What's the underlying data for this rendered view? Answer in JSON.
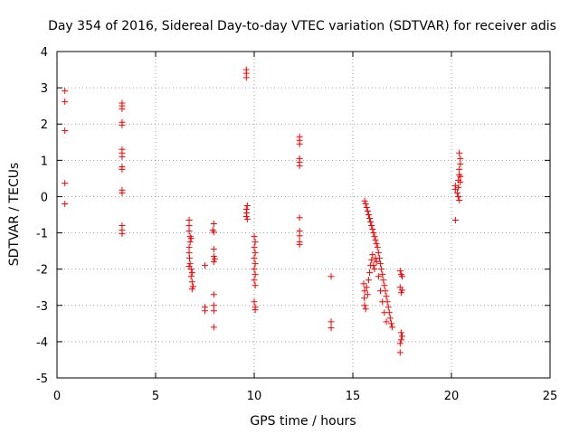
{
  "chart_data": {
    "type": "scatter",
    "title": "Day 354 of 2016, Sidereal Day-to-day VTEC variation (SDTVAR) for receiver adis",
    "xlabel": "GPS time / hours",
    "ylabel": "SDTVAR / TECUs",
    "xlim": [
      0,
      25
    ],
    "ylim": [
      -5,
      4
    ],
    "xticks": [
      "0",
      "5",
      "10",
      "15",
      "20",
      "25"
    ],
    "yticks": [
      "-5",
      "-4",
      "-3",
      "-2",
      "-1",
      "0",
      "1",
      "2",
      "3",
      "4"
    ],
    "grid": true,
    "marker": "+",
    "color": "#ff0000",
    "series": [
      {
        "name": "SDTVAR",
        "points": [
          [
            0.4,
            2.92
          ],
          [
            0.4,
            2.62
          ],
          [
            0.4,
            1.82
          ],
          [
            0.4,
            0.37
          ],
          [
            0.4,
            -0.2
          ],
          [
            3.3,
            2.58
          ],
          [
            3.3,
            2.5
          ],
          [
            3.3,
            2.42
          ],
          [
            3.3,
            2.05
          ],
          [
            3.3,
            1.97
          ],
          [
            3.3,
            1.3
          ],
          [
            3.3,
            1.2
          ],
          [
            3.3,
            1.1
          ],
          [
            3.3,
            0.82
          ],
          [
            3.3,
            0.75
          ],
          [
            3.3,
            0.18
          ],
          [
            3.3,
            0.1
          ],
          [
            3.3,
            -0.8
          ],
          [
            3.3,
            -0.92
          ],
          [
            3.3,
            -1.02
          ],
          [
            6.7,
            -0.65
          ],
          [
            6.7,
            -0.8
          ],
          [
            6.7,
            -0.95
          ],
          [
            6.75,
            -1.1
          ],
          [
            6.8,
            -1.15
          ],
          [
            6.75,
            -1.25
          ],
          [
            6.7,
            -1.4
          ],
          [
            6.7,
            -1.55
          ],
          [
            6.72,
            -1.7
          ],
          [
            6.75,
            -1.85
          ],
          [
            6.7,
            -1.92
          ],
          [
            6.8,
            -2.0
          ],
          [
            6.85,
            -2.1
          ],
          [
            6.8,
            -2.2
          ],
          [
            6.85,
            -2.35
          ],
          [
            6.9,
            -2.48
          ],
          [
            6.85,
            -2.55
          ],
          [
            7.5,
            -1.9
          ],
          [
            7.5,
            -3.05
          ],
          [
            7.5,
            -3.15
          ],
          [
            7.95,
            -0.75
          ],
          [
            7.9,
            -0.92
          ],
          [
            7.95,
            -0.98
          ],
          [
            7.95,
            -1.45
          ],
          [
            7.95,
            -1.65
          ],
          [
            8.0,
            -1.72
          ],
          [
            7.95,
            -1.8
          ],
          [
            7.95,
            -2.7
          ],
          [
            7.95,
            -3.0
          ],
          [
            7.95,
            -3.15
          ],
          [
            7.95,
            -3.6
          ],
          [
            9.6,
            3.5
          ],
          [
            9.6,
            3.4
          ],
          [
            9.6,
            3.28
          ],
          [
            9.65,
            -0.25
          ],
          [
            9.6,
            -0.35
          ],
          [
            9.62,
            -0.45
          ],
          [
            9.6,
            -0.55
          ],
          [
            9.65,
            -0.62
          ],
          [
            10.0,
            -1.1
          ],
          [
            10.05,
            -1.25
          ],
          [
            10.0,
            -1.4
          ],
          [
            10.05,
            -1.55
          ],
          [
            10.0,
            -1.7
          ],
          [
            10.05,
            -1.85
          ],
          [
            10.0,
            -2.0
          ],
          [
            10.05,
            -2.15
          ],
          [
            10.0,
            -2.3
          ],
          [
            10.05,
            -2.45
          ],
          [
            10.0,
            -2.9
          ],
          [
            10.05,
            -3.05
          ],
          [
            10.05,
            -3.12
          ],
          [
            12.3,
            1.65
          ],
          [
            12.3,
            1.55
          ],
          [
            12.3,
            1.45
          ],
          [
            12.3,
            1.05
          ],
          [
            12.3,
            0.95
          ],
          [
            12.3,
            0.85
          ],
          [
            12.3,
            -0.58
          ],
          [
            12.3,
            -0.95
          ],
          [
            12.3,
            -1.08
          ],
          [
            12.3,
            -1.25
          ],
          [
            12.3,
            -1.32
          ],
          [
            13.9,
            -2.2
          ],
          [
            13.9,
            -3.45
          ],
          [
            13.9,
            -3.62
          ],
          [
            15.6,
            -0.12
          ],
          [
            15.65,
            -0.2
          ],
          [
            15.7,
            -0.3
          ],
          [
            15.75,
            -0.4
          ],
          [
            15.8,
            -0.5
          ],
          [
            15.85,
            -0.6
          ],
          [
            15.9,
            -0.7
          ],
          [
            15.95,
            -0.8
          ],
          [
            16.0,
            -0.9
          ],
          [
            16.05,
            -1.0
          ],
          [
            16.1,
            -1.1
          ],
          [
            16.15,
            -1.2
          ],
          [
            16.2,
            -1.3
          ],
          [
            16.25,
            -1.4
          ],
          [
            16.3,
            -1.55
          ],
          [
            16.35,
            -1.7
          ],
          [
            16.4,
            -1.85
          ],
          [
            16.45,
            -2.0
          ],
          [
            16.5,
            -2.15
          ],
          [
            16.55,
            -2.3
          ],
          [
            16.6,
            -2.45
          ],
          [
            16.65,
            -2.6
          ],
          [
            16.7,
            -2.75
          ],
          [
            16.75,
            -2.9
          ],
          [
            16.8,
            -3.05
          ],
          [
            16.85,
            -3.2
          ],
          [
            16.9,
            -3.35
          ],
          [
            16.95,
            -3.5
          ],
          [
            17.0,
            -3.6
          ],
          [
            15.55,
            -2.4
          ],
          [
            15.6,
            -2.6
          ],
          [
            15.58,
            -2.8
          ],
          [
            15.6,
            -3.0
          ],
          [
            15.65,
            -3.1
          ],
          [
            15.7,
            -2.5
          ],
          [
            15.75,
            -2.7
          ],
          [
            15.8,
            -2.3
          ],
          [
            15.85,
            -2.1
          ],
          [
            15.9,
            -1.9
          ],
          [
            15.95,
            -1.75
          ],
          [
            16.0,
            -1.6
          ],
          [
            16.05,
            -1.9
          ],
          [
            16.1,
            -2.0
          ],
          [
            16.15,
            -1.7
          ],
          [
            16.2,
            -1.8
          ],
          [
            16.3,
            -2.2
          ],
          [
            16.4,
            -2.6
          ],
          [
            16.5,
            -2.9
          ],
          [
            16.6,
            -3.2
          ],
          [
            16.7,
            -3.45
          ],
          [
            17.4,
            -2.05
          ],
          [
            17.45,
            -2.15
          ],
          [
            17.5,
            -2.2
          ],
          [
            17.4,
            -2.5
          ],
          [
            17.5,
            -2.58
          ],
          [
            17.45,
            -2.65
          ],
          [
            17.45,
            -3.75
          ],
          [
            17.5,
            -3.85
          ],
          [
            17.45,
            -3.95
          ],
          [
            17.4,
            -4.05
          ],
          [
            17.4,
            -4.3
          ],
          [
            20.2,
            0.3
          ],
          [
            20.2,
            0.2
          ],
          [
            20.2,
            -0.65
          ],
          [
            20.3,
            0.1
          ],
          [
            20.35,
            0.25
          ],
          [
            20.35,
            0.45
          ],
          [
            20.4,
            0.6
          ],
          [
            20.4,
            0.75
          ],
          [
            20.45,
            0.9
          ],
          [
            20.45,
            1.05
          ],
          [
            20.4,
            1.2
          ],
          [
            20.35,
            0.0
          ],
          [
            20.4,
            -0.1
          ],
          [
            20.45,
            0.4
          ],
          [
            20.45,
            0.55
          ]
        ]
      }
    ]
  }
}
